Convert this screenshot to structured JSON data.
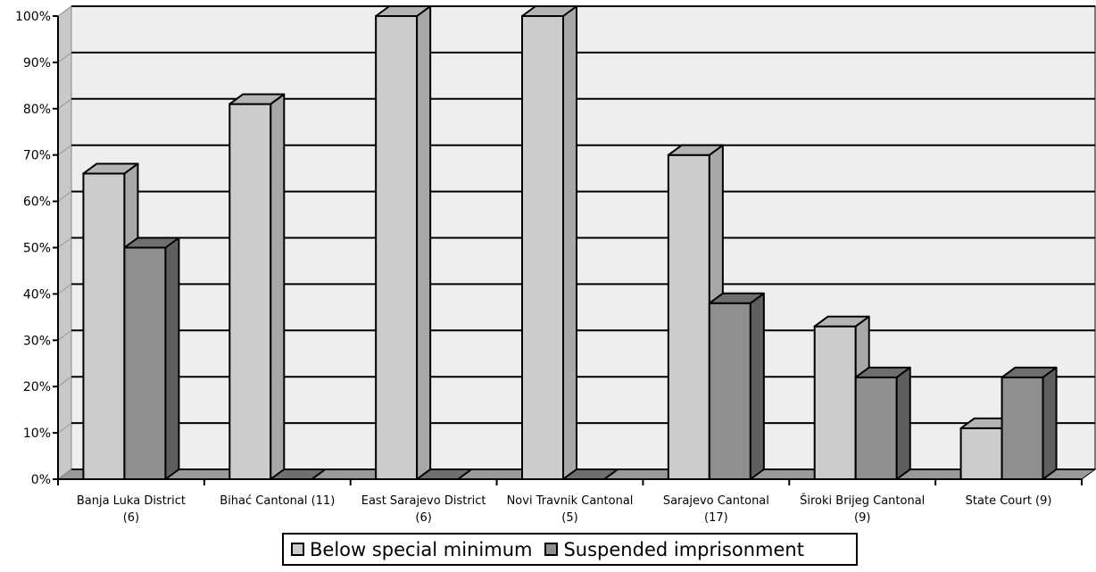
{
  "chart_data": {
    "type": "bar",
    "categories": [
      [
        "Banja Luka District",
        "(6)"
      ],
      [
        "Bihać Cantonal (11)"
      ],
      [
        "East Sarajevo District",
        "(6)"
      ],
      [
        "Novi Travnik Cantonal",
        "(5)"
      ],
      [
        "Sarajevo Cantonal",
        "(17)"
      ],
      [
        "Široki Brijeg Cantonal",
        "(9)"
      ],
      [
        "State Court (9)"
      ]
    ],
    "series": [
      {
        "name": "Below special minimum",
        "values": [
          66,
          81,
          100,
          100,
          70,
          33,
          11
        ],
        "color": "#cccccc",
        "side": "#a8a8a8",
        "top": "#b4b4b4"
      },
      {
        "name": "Suspended imprisonment",
        "values": [
          50,
          0,
          0,
          0,
          38,
          22,
          22
        ],
        "color": "#8f8f8f",
        "side": "#5f5f5f",
        "top": "#6f6f6f"
      }
    ],
    "yticks": [
      "0%",
      "10%",
      "20%",
      "30%",
      "40%",
      "50%",
      "60%",
      "70%",
      "80%",
      "90%",
      "100%"
    ],
    "ylim": [
      0,
      100
    ],
    "grid": true,
    "legend_position": "bottom-center",
    "three_d": true
  }
}
